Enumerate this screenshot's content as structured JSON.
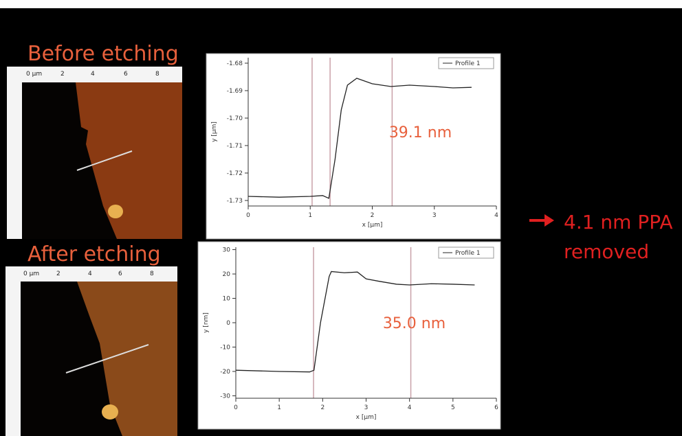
{
  "labels": {
    "before": "Before etching",
    "after": "After etching",
    "result": [
      "4.1 nm PPA",
      "removed"
    ]
  },
  "images": [
    {
      "ruler": [
        "0 µm",
        "2",
        "4",
        "6",
        "8"
      ]
    },
    {
      "ruler": [
        "0 µm",
        "2",
        "4",
        "6",
        "8"
      ]
    }
  ],
  "chart_data": [
    {
      "type": "line",
      "xlabel": "x [µm]",
      "ylabel": "y [µm]",
      "annotation": "39.1 nm",
      "x": [
        0,
        0.5,
        1.0,
        1.2,
        1.3,
        1.4,
        1.5,
        1.6,
        1.75,
        2.0,
        2.3,
        2.6,
        3.0,
        3.3,
        3.6
      ],
      "series": [
        {
          "name": "Profile 1",
          "color": "#222222",
          "values": [
            -1.7285,
            -1.7288,
            -1.7285,
            -1.7282,
            -1.7292,
            -1.715,
            -1.697,
            -1.688,
            -1.6855,
            -1.6875,
            -1.6885,
            -1.688,
            -1.6885,
            -1.689,
            -1.6888
          ]
        }
      ],
      "xlim": [
        0,
        4
      ],
      "xticks": [
        0,
        1,
        2,
        3,
        4
      ],
      "ylim": [
        -1.732,
        -1.678
      ],
      "yticks": [
        -1.68,
        -1.69,
        {
          "value": -1.7,
          "label": "-1.70"
        },
        -1.71,
        -1.72,
        -1.73
      ],
      "cursors": [
        1.03,
        1.32,
        2.32
      ],
      "cursor_color": "#c9a0a8"
    },
    {
      "type": "line",
      "xlabel": "x [µm]",
      "ylabel": "y [nm]",
      "annotation": "35.0 nm",
      "x": [
        0,
        1.0,
        1.7,
        1.8,
        1.95,
        2.15,
        2.2,
        2.5,
        2.8,
        3.0,
        3.3,
        3.7,
        4.0,
        4.5,
        5.0,
        5.5
      ],
      "series": [
        {
          "name": "Profile 1",
          "color": "#222222",
          "values": [
            -19.5,
            -20,
            -20.2,
            -19.5,
            0,
            19,
            21,
            20.5,
            20.8,
            18,
            17,
            15.8,
            15.5,
            16,
            15.8,
            15.5
          ]
        }
      ],
      "xlim": [
        0,
        6
      ],
      "xticks": [
        0,
        1,
        2,
        3,
        4,
        5,
        6
      ],
      "ylim": [
        -31,
        31
      ],
      "yticks": [
        30,
        20,
        10,
        0,
        -10,
        -20,
        -30
      ],
      "cursors": [
        1.79,
        4.03
      ],
      "cursor_color": "#c9a0a8"
    }
  ]
}
